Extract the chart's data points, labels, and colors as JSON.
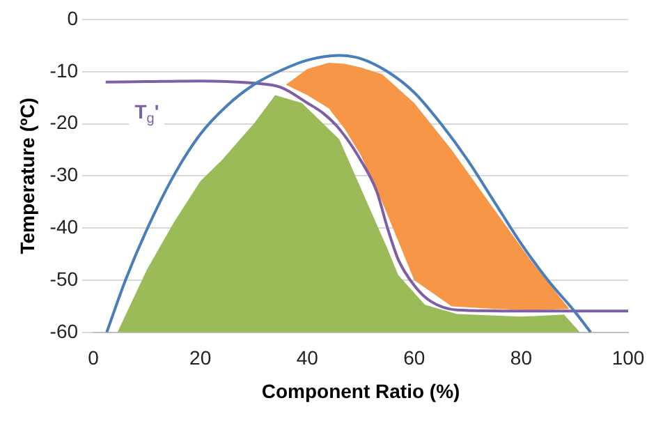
{
  "chart_data": {
    "type": "line",
    "xlabel": "Component Ratio (%)",
    "ylabel": "Temperature (ºC)",
    "xlim": [
      0,
      100
    ],
    "ylim": [
      -60,
      0
    ],
    "xticks": [
      0,
      20,
      40,
      60,
      80,
      100
    ],
    "yticks": [
      -60,
      -50,
      -40,
      -30,
      -20,
      -10,
      0
    ],
    "grid": "y",
    "legend": false,
    "series": [
      {
        "type": "area",
        "color": "#9bbb59",
        "x": [
          4.5,
          10,
          15,
          20,
          24,
          30,
          34,
          39,
          43,
          46,
          49,
          52,
          55,
          57,
          62,
          68,
          80,
          88,
          91
        ],
        "values": [
          -60,
          -48,
          -39,
          -31,
          -27,
          -20,
          -14.5,
          -16,
          -20,
          -23,
          -30,
          -37,
          -44,
          -49,
          -54.7,
          -56.5,
          -57,
          -56.6,
          -60
        ]
      },
      {
        "type": "area",
        "color": "#f79646",
        "x": [
          36,
          40,
          44,
          47,
          50,
          54,
          60,
          67,
          75,
          82,
          89,
          82,
          75,
          67,
          60,
          54,
          50,
          47,
          44,
          40
        ],
        "values": [
          -12.5,
          -9.5,
          -8.3,
          -8.5,
          -9.2,
          -10.5,
          -16,
          -25,
          -36.5,
          -46.5,
          -55.5,
          -55.7,
          -55.5,
          -55,
          -50,
          -35,
          -26,
          -21,
          -17,
          -14.5
        ]
      },
      {
        "color": "#4a7ebb",
        "x": [
          2.5,
          6,
          10,
          15,
          20,
          25,
          30,
          35,
          40,
          46,
          50,
          55,
          60,
          65,
          70,
          75,
          80,
          85,
          90,
          93
        ],
        "values": [
          -60,
          -50,
          -40.3,
          -30,
          -22,
          -16.5,
          -12.5,
          -9.8,
          -7.8,
          -6.9,
          -7.5,
          -10,
          -14,
          -20,
          -27,
          -35,
          -43,
          -50,
          -56,
          -60
        ]
      },
      {
        "color": "#7e5fa6",
        "x": [
          2.3,
          10,
          20,
          25,
          30,
          35,
          40,
          43,
          46,
          50,
          53,
          55,
          57,
          60,
          63,
          68,
          80,
          100
        ],
        "values": [
          -12,
          -11.9,
          -11.8,
          -11.9,
          -12.2,
          -13,
          -16,
          -18,
          -21,
          -27,
          -33,
          -40,
          -46,
          -51,
          -54,
          -55.7,
          -55.9,
          -55.9
        ]
      }
    ],
    "annotations": [
      {
        "text": "T$_{g}$'",
        "x": 10,
        "y": -18
      }
    ]
  }
}
